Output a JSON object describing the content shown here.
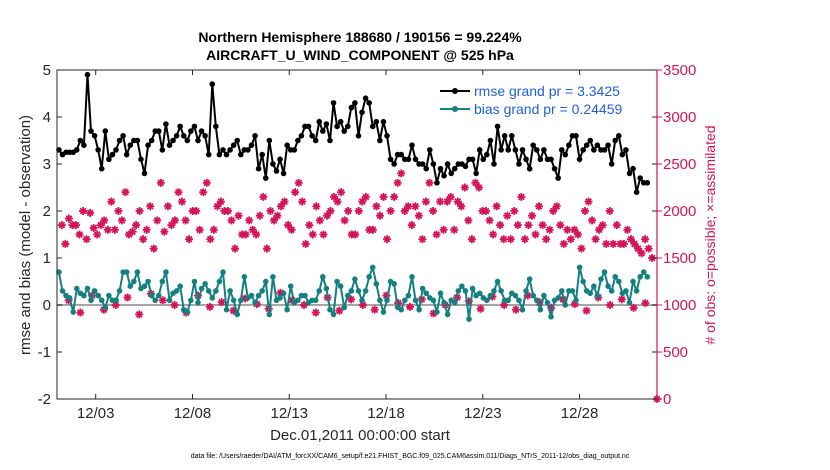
{
  "chart_data": {
    "type": "line",
    "title_line1": "Northern Hemisphere 188680 / 190156 = 99.224%",
    "title_line2": "AIRCRAFT_U_WIND_COMPONENT @ 525 hPa",
    "xlabel": "Dec.01,2011 00:00:00 start",
    "ylabel": "rmse and bias (model - observation)",
    "ylabel_right": "# of obs: o=possible; ×=assimilated",
    "ylim": [
      -2,
      5
    ],
    "ylim_right": [
      0,
      3500
    ],
    "yticks": [
      "-2",
      "-1",
      "0",
      "1",
      "2",
      "3",
      "4",
      "5"
    ],
    "yticks_right": [
      "0",
      "500",
      "1000",
      "1500",
      "2000",
      "2500",
      "3000",
      "3500"
    ],
    "xticks": [
      "12/03",
      "12/08",
      "12/13",
      "12/18",
      "12/23",
      "12/28"
    ],
    "xtick_days": [
      3,
      8,
      13,
      18,
      23,
      28
    ],
    "xlim_days": [
      1,
      32
    ],
    "legend": {
      "rmse": "rmse grand pr = 3.3425",
      "bias": "bias grand pr = 0.24459"
    },
    "colors": {
      "rmse": "#000000",
      "bias": "#148080",
      "obs": "#d4145a",
      "zero": "#a6a6a6",
      "blue_text": "#1f5fe0"
    },
    "rmse": [
      3.3,
      3.2,
      3.25,
      3.25,
      3.25,
      3.3,
      3.5,
      3.4,
      4.9,
      3.7,
      3.6,
      3.3,
      2.9,
      3.7,
      3.1,
      3.2,
      3.3,
      3.5,
      3.6,
      3.2,
      3.4,
      3.5,
      3.5,
      3.1,
      2.8,
      3.4,
      3.5,
      3.7,
      3.7,
      3.3,
      3.85,
      3.4,
      3.5,
      3.6,
      3.8,
      3.6,
      3.5,
      3.7,
      3.8,
      3.5,
      3.7,
      3.6,
      3.2,
      4.7,
      3.8,
      3.2,
      3.3,
      3.2,
      3.3,
      3.4,
      3.5,
      3.2,
      3.3,
      3.3,
      3.4,
      3.6,
      2.9,
      3.2,
      2.7,
      3.5,
      3.0,
      2.85,
      3.1,
      2.8,
      3.4,
      3.3,
      3.3,
      3.5,
      3.6,
      3.8,
      3.8,
      3.6,
      3.5,
      3.9,
      3.7,
      3.85,
      3.5,
      4.3,
      3.8,
      3.9,
      3.7,
      3.8,
      4.2,
      4.3,
      3.6,
      4.1,
      4.4,
      4.3,
      3.8,
      3.9,
      3.5,
      3.9,
      3.6,
      3.1,
      3.0,
      3.2,
      3.2,
      3.1,
      3.1,
      3.4,
      3.1,
      3.0,
      3.0,
      2.9,
      3.3,
      3.0,
      2.6,
      2.9,
      2.75,
      3.0,
      2.8,
      2.9,
      3.0,
      3.0,
      2.95,
      3.1,
      3.1,
      2.8,
      3.3,
      3.1,
      3.2,
      3.5,
      3.0,
      3.8,
      3.3,
      3.6,
      3.3,
      3.6,
      3.3,
      3.0,
      3.3,
      3.1,
      2.9,
      3.4,
      3.3,
      3.1,
      3.3,
      3.1,
      3.1,
      2.9,
      2.7,
      3.3,
      3.2,
      3.4,
      3.6,
      3.6,
      3.1,
      3.3,
      3.4,
      3.5,
      3.3,
      3.4,
      3.3,
      3.3,
      3.4,
      3.0,
      3.5,
      3.6,
      3.2,
      3.3,
      2.8,
      2.9,
      2.4,
      2.7,
      2.6,
      2.6
    ],
    "bias": [
      0.7,
      0.3,
      0.2,
      0.15,
      -0.15,
      0.35,
      0.25,
      0.2,
      0.35,
      0.1,
      0.3,
      0.2,
      0.1,
      -0.05,
      0.2,
      0.1,
      0.1,
      0.3,
      0.7,
      0.7,
      0.4,
      0.5,
      0.7,
      0.35,
      0.4,
      0.5,
      0.2,
      0.1,
      0.2,
      0.5,
      0.7,
      0.1,
      0.25,
      0.3,
      0.4,
      -0.1,
      -0.15,
      0.1,
      0.5,
      0.05,
      0.35,
      0.45,
      0.3,
      0.15,
      0.3,
      0.5,
      0.7,
      -0.1,
      0.3,
      0.1,
      -0.2,
      0.1,
      0.6,
      0.15,
      0.2,
      0.05,
      0.2,
      0.3,
      0.5,
      -0.2,
      0.6,
      0.1,
      0.15,
      0.25,
      -0.1,
      0.4,
      0.05,
      0.1,
      0.2,
      0.2,
      0.05,
      0.1,
      0.1,
      0.3,
      0.6,
      0.35,
      -0.1,
      -0.2,
      0.5,
      0.4,
      -0.05,
      0.2,
      0.3,
      0.55,
      0.3,
      0.1,
      0.3,
      0.6,
      0.8,
      0.45,
      0.1,
      -0.15,
      0.1,
      0.5,
      0.45,
      -0.05,
      -0.1,
      0.1,
      0.2,
      0.6,
      0.1,
      -0.1,
      0.35,
      0.25,
      0.15,
      0.1,
      -0.15,
      0.25,
      0.05,
      -0.2,
      0.1,
      0.05,
      0.3,
      0.4,
      0.3,
      -0.3,
      0.35,
      0.2,
      0.25,
      0.15,
      0.1,
      0.2,
      0.3,
      0.5,
      0.3,
      0.1,
      0.1,
      0.25,
      0.2,
      0.1,
      -0.1,
      0.3,
      0.55,
      0.2,
      0.1,
      -0.1,
      0.2,
      0.05,
      -0.25,
      0.1,
      0.15,
      0.3,
      0.0,
      0.3,
      0.3,
      0.1,
      0.8,
      0.5,
      0.3,
      0.25,
      0.4,
      0.2,
      0.55,
      0.7,
      0.4,
      0.3,
      0.6,
      0.5,
      0.25,
      0.3,
      0.05,
      0.5,
      0.3,
      0.6,
      0.7,
      0.6
    ],
    "obs": [
      1850,
      1650,
      1920,
      1850,
      1850,
      1750,
      2000,
      1700,
      1980,
      1820,
      1750,
      1850,
      1900,
      1800,
      2100,
      1800,
      2000,
      1900,
      2200,
      1750,
      1780,
      1850,
      2000,
      1700,
      1800,
      2050,
      1600,
      1900,
      2300,
      1780,
      2050,
      1850,
      1900,
      2200,
      2100,
      1900,
      1700,
      2000,
      2000,
      1800,
      2200,
      2300,
      1700,
      1800,
      2050,
      2100,
      2000,
      2000,
      1900,
      1600,
      1950,
      1750,
      1750,
      1900,
      1800,
      1750,
      1950,
      2150,
      1600,
      2000,
      1900,
      1950,
      2050,
      2100,
      1850,
      1800,
      2200,
      2300,
      2100,
      1650,
      1850,
      1750,
      2050,
      1900,
      1750,
      1950,
      2000,
      2150,
      2100,
      2200,
      1900,
      2000,
      1750,
      1750,
      2000,
      2100,
      2150,
      1800,
      1800,
      2050,
      1950,
      2150,
      1700,
      2000,
      2150,
      2300,
      2400,
      2000,
      2050,
      1850,
      2050,
      1950,
      1700,
      2100,
      2300,
      2000,
      1750,
      2100,
      1800,
      2100,
      2150,
      1800,
      2100,
      2050,
      2250,
      1900,
      1700,
      2300,
      2250,
      2000,
      2000,
      1900,
      1750,
      2050,
      1850,
      1700,
      1950,
      1700,
      2000,
      1850,
      2150,
      1700,
      1850,
      1950,
      1750,
      2050,
      1850,
      1700,
      1800,
      2000,
      2050,
      1850,
      1650,
      1800,
      1700,
      1800,
      1750,
      1600,
      2000,
      2100,
      1900,
      1700,
      1800,
      1850,
      1650,
      2000,
      1650,
      1850,
      1650,
      1650,
      1800,
      1700,
      1650,
      1600,
      1550,
      1700,
      1600,
      1500
    ],
    "obs_low": [
      1050,
      920,
      1100,
      950,
      1000,
      1080,
      900,
      1120,
      1050,
      1000,
      920,
      1100,
      980,
      1030,
      940,
      1070,
      1010,
      960,
      1130,
      1050,
      1000,
      920,
      1080,
      940,
      1060,
      1000,
      950,
      1100,
      1020,
      980,
      1060,
      910,
      1000,
      1080,
      1040,
      960,
      1090,
      1000,
      950,
      1100,
      1030,
      970,
      1060,
      1010,
      940,
      1080,
      1000,
      1060,
      970,
      1020
    ],
    "footer": "data file: /Users/raeder/DAI/ATM_forcXX/CAM6_setup/f.e21.FHIST_BGC.f09_025.CAM6assim.011/Diags_NTrS_2011-12/obs_diag_output.nc"
  }
}
